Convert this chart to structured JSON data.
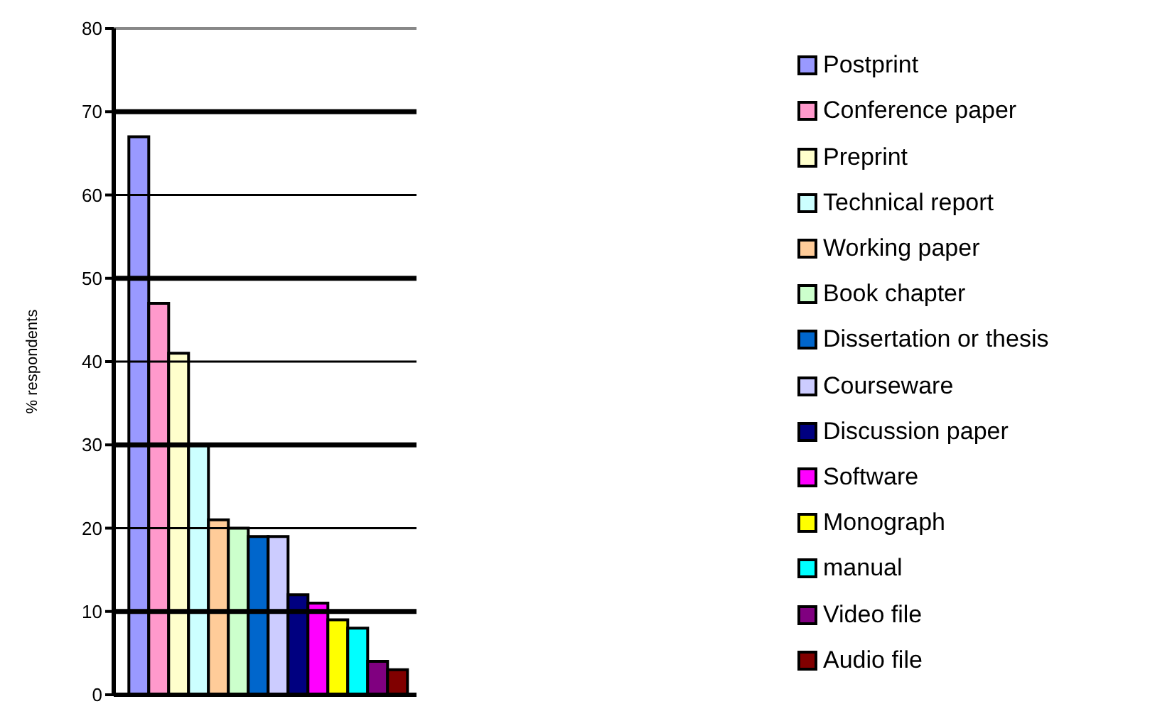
{
  "chart_data": {
    "type": "bar",
    "ylabel": "% respondents",
    "categories": [
      null
    ],
    "series": [
      {
        "name": "Postprint",
        "color": "#9999ff",
        "values": [
          67
        ]
      },
      {
        "name": "Conference paper",
        "color": "#ff99cc",
        "values": [
          47
        ]
      },
      {
        "name": "Preprint",
        "color": "#ffffcc",
        "values": [
          41
        ]
      },
      {
        "name": "Technical report",
        "color": "#ccffff",
        "values": [
          30
        ]
      },
      {
        "name": "Working paper",
        "color": "#ffcc99",
        "values": [
          21
        ]
      },
      {
        "name": "Book chapter",
        "color": "#ccffcc",
        "values": [
          20
        ]
      },
      {
        "name": "Dissertation or thesis",
        "color": "#0066cc",
        "values": [
          19
        ]
      },
      {
        "name": "Courseware",
        "color": "#ccccff",
        "values": [
          19
        ]
      },
      {
        "name": "Discussion paper",
        "color": "#000080",
        "values": [
          12
        ]
      },
      {
        "name": "Software",
        "color": "#ff00ff",
        "values": [
          11
        ]
      },
      {
        "name": "Monograph",
        "color": "#ffff00",
        "values": [
          9
        ]
      },
      {
        "name": "manual",
        "color": "#00ffff",
        "values": [
          8
        ]
      },
      {
        "name": "Video file",
        "color": "#800080",
        "values": [
          4
        ]
      },
      {
        "name": "Audio file",
        "color": "#800000",
        "values": [
          3
        ]
      }
    ],
    "ylim": [
      0,
      80
    ],
    "yticks": [
      0,
      10,
      20,
      30,
      40,
      50,
      60,
      70,
      80
    ],
    "grid": "y",
    "legend": "right"
  }
}
